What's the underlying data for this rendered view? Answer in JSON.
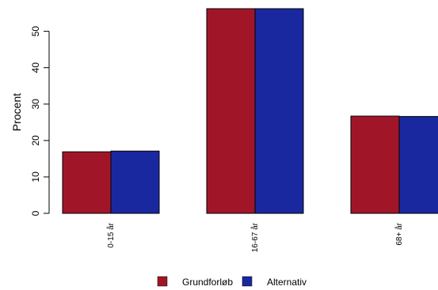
{
  "chart_data": {
    "type": "bar",
    "categories": [
      "0-15 år",
      "16-67 år",
      "68+ år"
    ],
    "series": [
      {
        "name": "Grundforløb",
        "values": [
          16.9,
          56.2,
          26.7
        ],
        "color": "#a01628"
      },
      {
        "name": "Alternativ",
        "values": [
          17.1,
          56.2,
          26.6
        ],
        "color": "#1a28a0"
      }
    ],
    "ylabel": "Procent",
    "xlabel": "",
    "yticks": [
      0,
      10,
      20,
      30,
      40,
      50
    ],
    "ylim": [
      0,
      56.2
    ],
    "grid": false,
    "legend_position": "bottom"
  }
}
